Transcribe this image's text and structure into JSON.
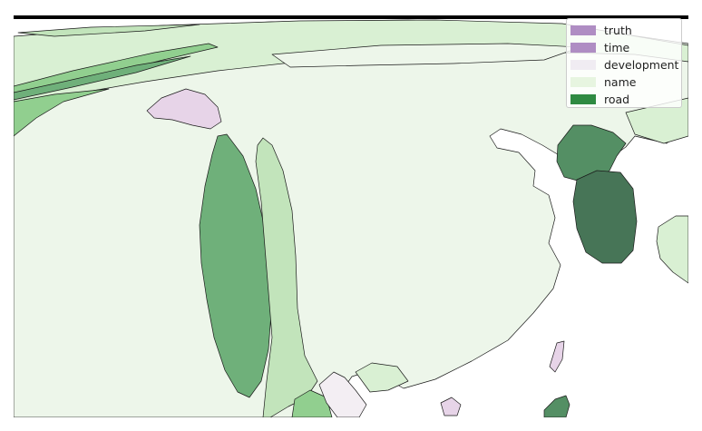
{
  "colors": {
    "frame_top": "#000000",
    "ocean": "#ffffff",
    "outline": "#1a1a1a",
    "land_base": "#edf6ea",
    "green_pale": "#d9f0d3",
    "green_light": "#c2e4bb",
    "green_mid": "#91cf8f",
    "green_medium": "#6fb07a",
    "green_dark": "#548f64",
    "green_darkest": "#477557",
    "purple_pale": "#e7d4e8",
    "purple_faint": "#f3eef3"
  },
  "legend": {
    "items": [
      {
        "label": "truth",
        "color": "#af8dc3"
      },
      {
        "label": "time",
        "color": "#af8dc3"
      },
      {
        "label": "development",
        "color": "#f0ecf2"
      },
      {
        "label": "name",
        "color": "#e7f5e0"
      },
      {
        "label": "road",
        "color": "#2f8a42"
      }
    ]
  }
}
